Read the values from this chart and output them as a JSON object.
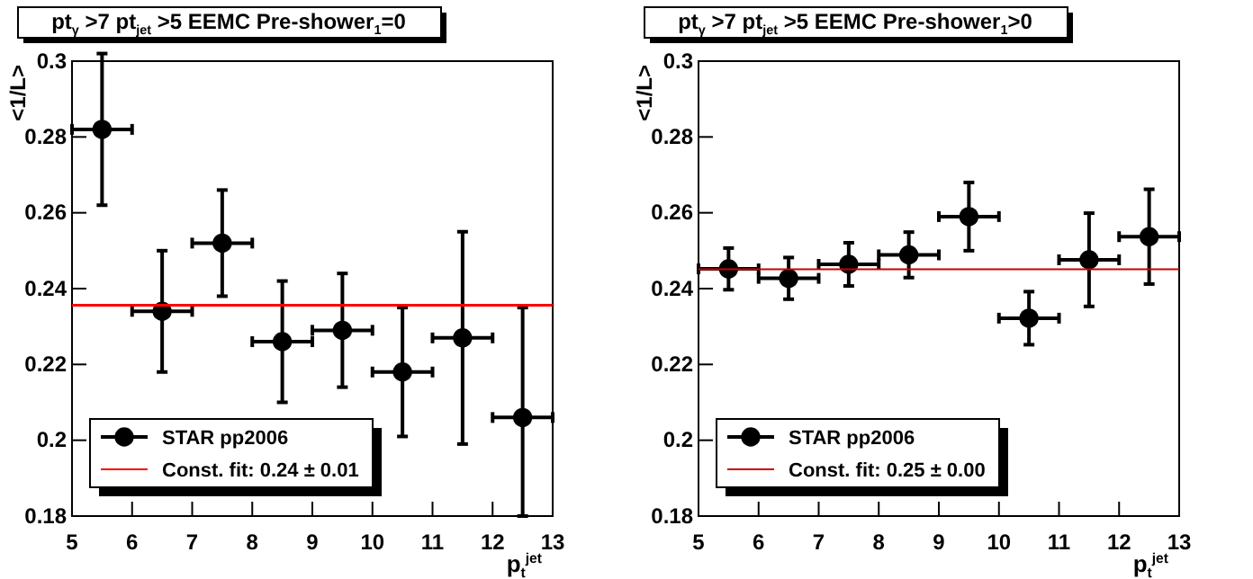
{
  "chart_data": [
    {
      "type": "scatter",
      "title": "pt$_{γ}$ >7  pt$_{jet}$ >5  EEMC Pre-shower$_{1}$=0",
      "xlabel": "p$_{t}$$^{jet}$",
      "ylabel": "<1/L>",
      "xlim": [
        5,
        13
      ],
      "xticks": [
        5,
        6,
        7,
        8,
        9,
        10,
        11,
        12,
        13
      ],
      "ylim": [
        0.18,
        0.3
      ],
      "yticks": [
        0.18,
        0.2,
        0.22,
        0.24,
        0.26,
        0.28,
        0.3
      ],
      "grid": false,
      "legend": "bottom left",
      "series": [
        {
          "name": "STAR pp2006",
          "color": "#000000",
          "marker": "circle",
          "x": [
            5.5,
            6.5,
            7.5,
            8.5,
            9.5,
            10.5,
            11.5,
            12.5
          ],
          "values": [
            0.282,
            0.234,
            0.252,
            0.226,
            0.229,
            0.218,
            0.227,
            0.206
          ],
          "errors": [
            0.02,
            0.016,
            0.014,
            0.016,
            0.015,
            0.017,
            0.028,
            [
              0.18,
              0.235
            ]
          ],
          "xerrors": [
            0.5,
            0.5,
            0.5,
            0.5,
            0.5,
            0.5,
            0.5,
            0.5
          ]
        },
        {
          "name": "Const. fit: 0.24 ± 0.01",
          "type": "line",
          "color": "#ff0000",
          "line_style": "solid",
          "marker": "none",
          "x": [
            5,
            13
          ],
          "values": [
            0.2356,
            0.2356
          ]
        }
      ]
    },
    {
      "type": "scatter",
      "title": "pt$_{γ}$ >7  pt$_{jet}$ >5  EEMC Pre-shower$_{1}$>0",
      "xlabel": "p$_{t}$$^{jet}$",
      "ylabel": "<1/L>",
      "xlim": [
        5,
        13
      ],
      "xticks": [
        5,
        6,
        7,
        8,
        9,
        10,
        11,
        12,
        13
      ],
      "ylim": [
        0.18,
        0.3
      ],
      "yticks": [
        0.18,
        0.2,
        0.22,
        0.24,
        0.26,
        0.28,
        0.3
      ],
      "grid": false,
      "legend": "bottom left",
      "series": [
        {
          "name": "STAR pp2006",
          "color": "#000000",
          "marker": "circle",
          "x": [
            5.5,
            6.5,
            7.5,
            8.5,
            9.5,
            10.5,
            11.5,
            12.5
          ],
          "values": [
            0.2452,
            0.2427,
            0.2464,
            0.2489,
            0.259,
            0.2322,
            0.2476,
            0.2537
          ],
          "errors": [
            0.0055,
            0.0055,
            0.0057,
            0.006,
            0.009,
            0.007,
            0.0123,
            0.0125
          ],
          "xerrors": [
            0.5,
            0.5,
            0.5,
            0.5,
            0.5,
            0.5,
            0.5,
            0.5
          ]
        },
        {
          "name": "Const. fit: 0.25 ± 0.00",
          "type": "line",
          "color": "#cc0000",
          "line_style": "solid",
          "marker": "none",
          "x": [
            5,
            13
          ],
          "values": [
            0.2451,
            0.2451
          ]
        }
      ]
    }
  ]
}
